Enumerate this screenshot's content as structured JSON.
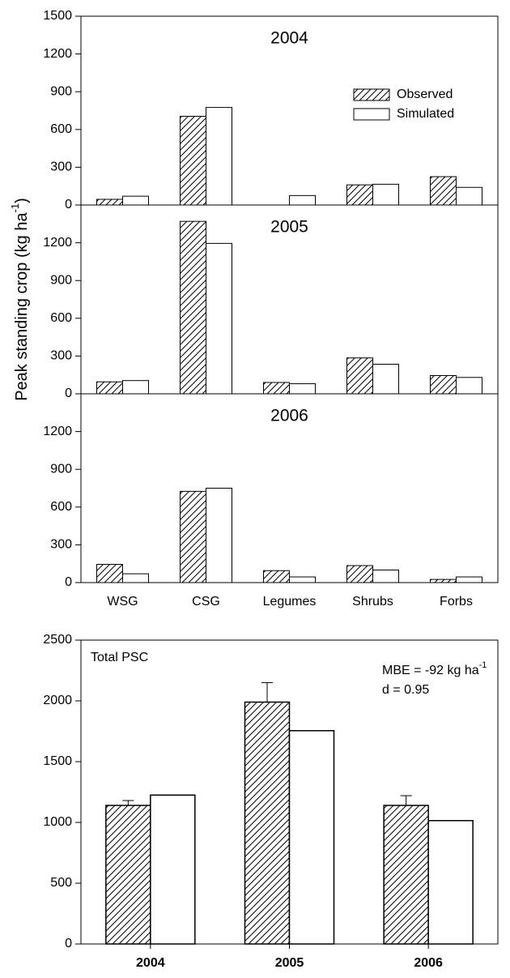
{
  "chart_data": [
    {
      "type": "bar",
      "title": "2004",
      "series": [
        {
          "name": "Observed",
          "fill": "hatch",
          "values": [
            45,
            705,
            null,
            160,
            225
          ]
        },
        {
          "name": "Simulated",
          "fill": "#ffffff",
          "values": [
            70,
            775,
            75,
            165,
            140
          ]
        }
      ],
      "ylim": [
        0,
        1500
      ],
      "yticks": [
        0,
        300,
        600,
        900,
        1200,
        1500
      ],
      "legend": "upper right"
    },
    {
      "type": "bar",
      "title": "2005",
      "ylabel": [
        "Peak standing crop (kg ha",
        "-1",
        ")"
      ],
      "series": [
        {
          "fill": "hatch",
          "values": [
            95,
            1370,
            90,
            285,
            145
          ]
        },
        {
          "fill": "#ffffff",
          "values": [
            105,
            1195,
            80,
            235,
            130
          ]
        }
      ],
      "ylim": [
        0,
        1500
      ],
      "yticks": [
        0,
        300,
        600,
        900,
        1200
      ]
    },
    {
      "type": "bar",
      "title": "2006",
      "categories": [
        "WSG",
        "CSG",
        "Legumes",
        "Shrubs",
        "Forbs"
      ],
      "series": [
        {
          "fill": "hatch",
          "values": [
            145,
            725,
            95,
            135,
            25
          ]
        },
        {
          "fill": "#ffffff",
          "values": [
            70,
            750,
            45,
            100,
            45
          ]
        }
      ],
      "ylim": [
        0,
        1500
      ],
      "yticks": [
        0,
        300,
        600,
        900,
        1200
      ]
    },
    {
      "type": "bar",
      "title": "Total PSC",
      "annotation": [
        "MBE = -92 kg ha",
        "-1"
      ],
      "annotation2": "d = 0.95",
      "categories": [
        "2004",
        "2005",
        "2006"
      ],
      "series": [
        {
          "fill": "hatch",
          "values": [
            1140,
            1990,
            1140
          ],
          "errors": [
            40,
            160,
            80
          ]
        },
        {
          "fill": "#ffffff",
          "values": [
            1225,
            1755,
            1015
          ]
        }
      ],
      "ylim": [
        0,
        2500
      ],
      "yticks": [
        0,
        500,
        1000,
        1500,
        2000,
        2500
      ]
    }
  ]
}
